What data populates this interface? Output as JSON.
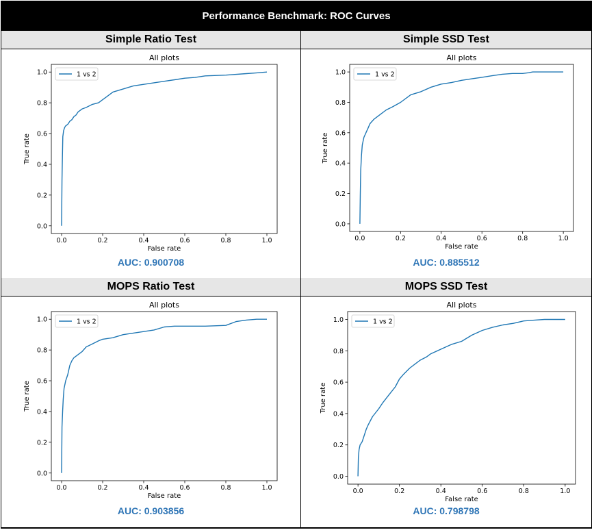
{
  "banner": {
    "title": "Performance Benchmark: ROC Curves"
  },
  "colors": {
    "curve": "#1f77b4",
    "auc": "#2e75b6",
    "header_bg": "#e6e6e6"
  },
  "panels": [
    {
      "heading": "Simple Ratio Test",
      "auc_text": "AUC: 0.900708"
    },
    {
      "heading": "Simple SSD Test",
      "auc_text": "AUC: 0.885512"
    },
    {
      "heading": "MOPS Ratio Test",
      "auc_text": "AUC: 0.903856"
    },
    {
      "heading": "MOPS SSD Test",
      "auc_text": "AUC: 0.798798"
    }
  ],
  "chart_data": [
    {
      "type": "line",
      "title": "All plots",
      "xlabel": "False rate",
      "ylabel": "True rate",
      "xlim": [
        0,
        1
      ],
      "ylim": [
        0,
        1
      ],
      "xticks": [
        "0.0",
        "0.2",
        "0.4",
        "0.6",
        "0.8",
        "1.0"
      ],
      "yticks": [
        "0.0",
        "0.2",
        "0.4",
        "0.6",
        "0.8",
        "1.0"
      ],
      "legend": "top-left",
      "grid": false,
      "series": [
        {
          "name": "1 vs 2",
          "x": [
            0.0,
            0.002,
            0.004,
            0.006,
            0.01,
            0.015,
            0.02,
            0.03,
            0.04,
            0.05,
            0.06,
            0.07,
            0.08,
            0.1,
            0.12,
            0.15,
            0.18,
            0.2,
            0.22,
            0.25,
            0.3,
            0.35,
            0.4,
            0.45,
            0.5,
            0.55,
            0.6,
            0.65,
            0.7,
            0.8,
            0.9,
            0.95,
            1.0
          ],
          "y": [
            0.0,
            0.3,
            0.45,
            0.58,
            0.62,
            0.64,
            0.65,
            0.66,
            0.68,
            0.69,
            0.71,
            0.72,
            0.74,
            0.76,
            0.77,
            0.79,
            0.8,
            0.82,
            0.84,
            0.87,
            0.89,
            0.91,
            0.92,
            0.93,
            0.94,
            0.95,
            0.96,
            0.965,
            0.975,
            0.98,
            0.99,
            0.995,
            1.0
          ]
        }
      ]
    },
    {
      "type": "line",
      "title": "All plots",
      "xlabel": "False rate",
      "ylabel": "True rate",
      "xlim": [
        0,
        1
      ],
      "ylim": [
        0,
        1
      ],
      "xticks": [
        "0.0",
        "0.2",
        "0.4",
        "0.6",
        "0.8",
        "1.0"
      ],
      "yticks": [
        "0.0",
        "0.2",
        "0.4",
        "0.6",
        "0.8",
        "1.0"
      ],
      "legend": "top-left",
      "grid": false,
      "series": [
        {
          "name": "1 vs 2",
          "x": [
            0.0,
            0.002,
            0.004,
            0.008,
            0.012,
            0.02,
            0.03,
            0.04,
            0.05,
            0.07,
            0.1,
            0.13,
            0.16,
            0.2,
            0.25,
            0.3,
            0.35,
            0.4,
            0.45,
            0.5,
            0.55,
            0.6,
            0.65,
            0.7,
            0.75,
            0.8,
            0.83,
            0.85,
            0.9,
            1.0
          ],
          "y": [
            0.0,
            0.2,
            0.35,
            0.45,
            0.52,
            0.57,
            0.6,
            0.63,
            0.66,
            0.69,
            0.72,
            0.75,
            0.77,
            0.8,
            0.85,
            0.87,
            0.9,
            0.92,
            0.93,
            0.945,
            0.955,
            0.965,
            0.975,
            0.985,
            0.99,
            0.99,
            0.995,
            1.0,
            1.0,
            1.0
          ]
        }
      ]
    },
    {
      "type": "line",
      "title": "All plots",
      "xlabel": "False rate",
      "ylabel": "True rate",
      "xlim": [
        0,
        1
      ],
      "ylim": [
        0,
        1
      ],
      "xticks": [
        "0.0",
        "0.2",
        "0.4",
        "0.6",
        "0.8",
        "1.0"
      ],
      "yticks": [
        "0.0",
        "0.2",
        "0.4",
        "0.6",
        "0.8",
        "1.0"
      ],
      "legend": "top-left",
      "grid": false,
      "series": [
        {
          "name": "1 vs 2",
          "x": [
            0.0,
            0.002,
            0.005,
            0.008,
            0.012,
            0.02,
            0.03,
            0.04,
            0.05,
            0.06,
            0.08,
            0.1,
            0.12,
            0.15,
            0.18,
            0.2,
            0.25,
            0.3,
            0.35,
            0.4,
            0.45,
            0.5,
            0.55,
            0.6,
            0.7,
            0.8,
            0.85,
            0.9,
            0.95,
            1.0
          ],
          "y": [
            0.0,
            0.3,
            0.4,
            0.48,
            0.55,
            0.6,
            0.64,
            0.7,
            0.73,
            0.75,
            0.77,
            0.79,
            0.82,
            0.84,
            0.86,
            0.87,
            0.88,
            0.9,
            0.91,
            0.92,
            0.93,
            0.95,
            0.955,
            0.955,
            0.955,
            0.96,
            0.985,
            0.995,
            1.0,
            1.0
          ]
        }
      ]
    },
    {
      "type": "line",
      "title": "All plots",
      "xlabel": "False rate",
      "ylabel": "True rate",
      "xlim": [
        0,
        1
      ],
      "ylim": [
        0,
        1
      ],
      "xticks": [
        "0.0",
        "0.2",
        "0.4",
        "0.6",
        "0.8",
        "1.0"
      ],
      "yticks": [
        "0.0",
        "0.2",
        "0.4",
        "0.6",
        "0.8",
        "1.0"
      ],
      "legend": "top-left",
      "grid": false,
      "series": [
        {
          "name": "1 vs 2",
          "x": [
            0.0,
            0.002,
            0.005,
            0.01,
            0.02,
            0.03,
            0.04,
            0.05,
            0.07,
            0.1,
            0.12,
            0.15,
            0.18,
            0.2,
            0.22,
            0.25,
            0.28,
            0.3,
            0.33,
            0.35,
            0.4,
            0.45,
            0.5,
            0.55,
            0.6,
            0.65,
            0.7,
            0.75,
            0.8,
            0.85,
            0.9,
            1.0
          ],
          "y": [
            0.0,
            0.12,
            0.17,
            0.2,
            0.22,
            0.26,
            0.3,
            0.33,
            0.38,
            0.43,
            0.47,
            0.52,
            0.57,
            0.62,
            0.65,
            0.69,
            0.72,
            0.74,
            0.76,
            0.78,
            0.81,
            0.84,
            0.86,
            0.9,
            0.93,
            0.95,
            0.965,
            0.975,
            0.99,
            0.995,
            1.0,
            1.0
          ]
        }
      ]
    }
  ]
}
